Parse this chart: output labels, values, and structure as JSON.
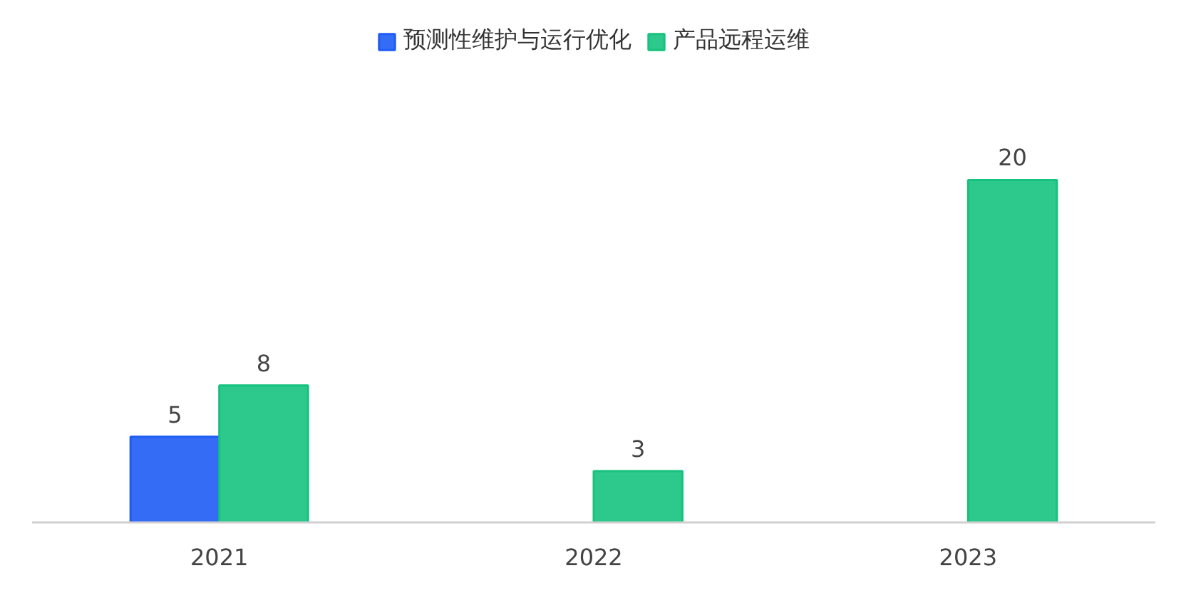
{
  "chart_data": {
    "type": "bar",
    "categories": [
      "2021",
      "2022",
      "2023"
    ],
    "series": [
      {
        "name": "预测性维护与运行优化",
        "color": "#1e5cf5",
        "values": [
          5,
          null,
          null
        ]
      },
      {
        "name": "产品远程运维",
        "color": "#16c27e",
        "values": [
          8,
          3,
          20
        ]
      }
    ],
    "data_labels": true,
    "legend": "top",
    "grid": false
  }
}
